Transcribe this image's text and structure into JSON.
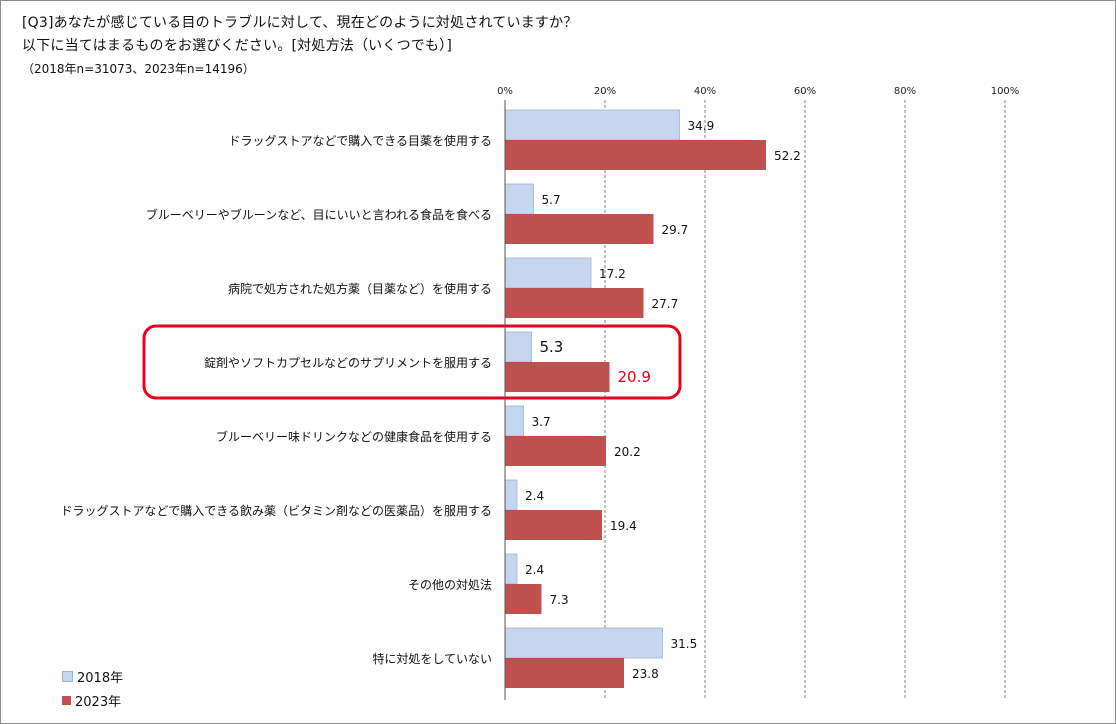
{
  "title": "[Q3]あなたが感じている目のトラブルに対して、現在どのように対処されていますか？",
  "subtitle": "以下に当てはまるものをお選びください。[対処方法（いくつでも）]",
  "sample_note": "（2018年n=31073、2023年n=14196）",
  "colors": {
    "s2018": "#c6d6ee",
    "s2018_edge": "#9eb3d2",
    "s2023": "#c0504d",
    "highlight": "#e8001c",
    "grid": "#7f7f7f"
  },
  "chart_data": {
    "type": "bar",
    "orientation": "horizontal",
    "categories": [
      "ドラッグストアなどで購入できる目薬を使用する",
      "ブルーベリーやブルーンなど、目にいいと言われる食品を食べる",
      "病院で処方された処方薬（目薬など）を使用する",
      "錠剤やソフトカプセルなどのサプリメントを服用する",
      "ブルーベリー味ドリンクなどの健康食品を使用する",
      "ドラッグストアなどで購入できる飲み薬（ビタミン剤などの医薬品）を服用する",
      "その他の対処法",
      "特に対処をしていない"
    ],
    "series": [
      {
        "name": "2018年",
        "values": [
          34.9,
          5.7,
          17.2,
          5.3,
          3.7,
          2.4,
          2.4,
          31.5
        ]
      },
      {
        "name": "2023年",
        "values": [
          52.2,
          29.7,
          27.7,
          20.9,
          20.2,
          19.4,
          7.3,
          23.8
        ]
      }
    ],
    "xlim": [
      0,
      100
    ],
    "tick_labels": [
      "0%",
      "20%",
      "40%",
      "60%",
      "80%",
      "100%"
    ],
    "grid": true,
    "legend_placement": "bottom-left",
    "highlighted_category": "錠剤やソフトカプセルなどのサプリメントを服用する"
  }
}
